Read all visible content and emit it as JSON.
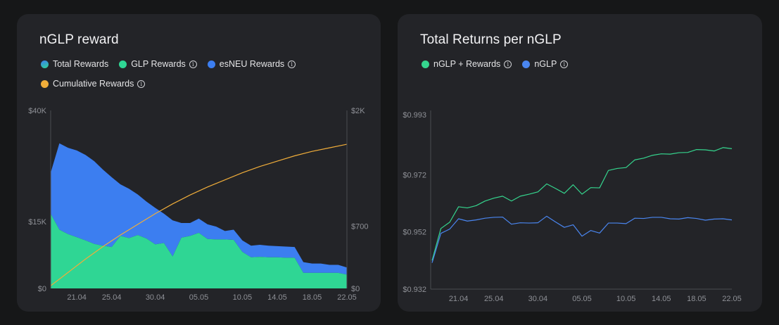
{
  "colors": {
    "background": "#161718",
    "card": "#232428",
    "total": "#2bb7c6",
    "glp": "#2fd694",
    "esneu": "#3c7ef0",
    "cumulative": "#f0ad3a",
    "line_rewards": "#35d58e",
    "line_nglp": "#4a86f0",
    "axis": "#4a4b50",
    "tick_text": "#8e9096"
  },
  "left": {
    "title": "nGLP reward",
    "legend": [
      {
        "label": "Total Rewards",
        "color": "#2bb7c6",
        "info": false,
        "icon": "gradient-dot-icon"
      },
      {
        "label": "GLP Rewards",
        "color": "#2fd694",
        "info": true,
        "icon": "info-icon"
      },
      {
        "label": "esNEU Rewards",
        "color": "#3c7ef0",
        "info": true,
        "icon": "info-icon"
      }
    ],
    "legend2": [
      {
        "label": "Cumulative Rewards",
        "color": "#f0ad3a",
        "info": true,
        "icon": "info-icon"
      }
    ],
    "info_glyph": "i"
  },
  "right": {
    "title": "Total Returns per nGLP",
    "legend": [
      {
        "label": "nGLP + Rewards",
        "color": "#35d58e",
        "info": true,
        "icon": "info-icon"
      },
      {
        "label": "nGLP",
        "color": "#4a86f0",
        "info": true,
        "icon": "info-icon"
      }
    ],
    "info_glyph": "i"
  },
  "chart_data": [
    {
      "type": "area",
      "title": "nGLP reward",
      "x_ticks": [
        "21.04",
        "25.04",
        "30.04",
        "05.05",
        "10.05",
        "14.05",
        "18.05",
        "22.05"
      ],
      "y_left_ticks": [
        "$0",
        "$15K",
        "$40K"
      ],
      "y_left_tick_values": [
        0,
        15000,
        40000
      ],
      "y_right_ticks": [
        "$0",
        "$700",
        "$2K"
      ],
      "y_right_tick_values": [
        0,
        700,
        2000
      ],
      "ylim_left": [
        0,
        40000
      ],
      "ylim_right": [
        0,
        2000
      ],
      "x_day_range": [
        18,
        52
      ],
      "x_tick_days": [
        21,
        25,
        30,
        35,
        40,
        44,
        48,
        52
      ],
      "series": [
        {
          "name": "GLP Rewards",
          "stacked": true,
          "axis": "left",
          "x": [
            18,
            19,
            20,
            21,
            22,
            23,
            24,
            25,
            26,
            27,
            28,
            29,
            30,
            31,
            32,
            33,
            34,
            35,
            36,
            37,
            38,
            39,
            40,
            41,
            42,
            43,
            44,
            45,
            46,
            47,
            48,
            49,
            50,
            51,
            52
          ],
          "values": [
            16800,
            13200,
            12200,
            11500,
            10800,
            10000,
            9600,
            9300,
            11800,
            11300,
            12000,
            11200,
            9900,
            10200,
            7200,
            11400,
            11800,
            12500,
            11100,
            11000,
            11000,
            10900,
            8200,
            7000,
            7100,
            7000,
            7000,
            6900,
            6900,
            3500,
            3500,
            3500,
            3500,
            3500,
            3100
          ]
        },
        {
          "name": "esNEU Rewards",
          "stacked": true,
          "axis": "left",
          "x": [
            18,
            19,
            20,
            21,
            22,
            23,
            24,
            25,
            26,
            27,
            28,
            29,
            30,
            31,
            32,
            33,
            34,
            35,
            36,
            37,
            38,
            39,
            40,
            41,
            42,
            43,
            44,
            45,
            46,
            47,
            48,
            49,
            50,
            51,
            52
          ],
          "values": [
            9200,
            19400,
            19400,
            19500,
            19200,
            18600,
            17100,
            15700,
            11600,
            11100,
            9100,
            8300,
            8200,
            6600,
            8100,
            3300,
            2900,
            3200,
            3300,
            2900,
            1900,
            2300,
            2600,
            2600,
            2700,
            2600,
            2500,
            2500,
            2400,
            2400,
            2100,
            2100,
            1800,
            1800,
            1600
          ]
        },
        {
          "name": "Cumulative Rewards",
          "axis": "right",
          "x": [
            18,
            20,
            22,
            24,
            26,
            28,
            30,
            32,
            34,
            36,
            38,
            40,
            42,
            44,
            46,
            48,
            50,
            52
          ],
          "values": [
            30,
            180,
            330,
            470,
            600,
            720,
            840,
            950,
            1050,
            1140,
            1220,
            1300,
            1370,
            1430,
            1490,
            1540,
            1580,
            1620
          ]
        }
      ]
    },
    {
      "type": "line",
      "title": "Total Returns per nGLP",
      "x_ticks": [
        "21.04",
        "25.04",
        "30.04",
        "05.05",
        "10.05",
        "14.05",
        "18.05",
        "22.05"
      ],
      "y_ticks": [
        "$0.932",
        "$0.952",
        "$0.972",
        "$0.993"
      ],
      "y_tick_values": [
        0.932,
        0.952,
        0.972,
        0.993
      ],
      "ylim": [
        0.932,
        0.993
      ],
      "x_day_range": [
        18,
        52
      ],
      "x_tick_days": [
        21,
        25,
        30,
        35,
        40,
        44,
        48,
        52
      ],
      "series": [
        {
          "name": "nGLP + Rewards",
          "x": [
            18,
            19,
            20,
            21,
            22,
            23,
            24,
            25,
            26,
            27,
            28,
            29,
            30,
            31,
            32,
            33,
            34,
            35,
            36,
            37,
            38,
            39,
            40,
            41,
            42,
            43,
            44,
            45,
            46,
            47,
            48,
            49,
            50,
            51,
            52
          ],
          "values": [
            0.942,
            0.9532,
            0.9554,
            0.9608,
            0.9604,
            0.9612,
            0.9628,
            0.9638,
            0.9645,
            0.9628,
            0.9645,
            0.9652,
            0.966,
            0.9688,
            0.9672,
            0.9655,
            0.9685,
            0.9652,
            0.9675,
            0.9674,
            0.9735,
            0.9742,
            0.9745,
            0.9772,
            0.9778,
            0.9788,
            0.9793,
            0.9792,
            0.9797,
            0.9798,
            0.9808,
            0.9807,
            0.9803,
            0.9815,
            0.9811
          ]
        },
        {
          "name": "nGLP",
          "x": [
            18,
            19,
            20,
            21,
            22,
            23,
            24,
            25,
            26,
            27,
            28,
            29,
            30,
            31,
            32,
            33,
            34,
            35,
            36,
            37,
            38,
            39,
            40,
            41,
            42,
            43,
            44,
            45,
            46,
            47,
            48,
            49,
            50,
            51,
            52
          ],
          "values": [
            0.9412,
            0.9515,
            0.953,
            0.9566,
            0.9558,
            0.9562,
            0.9568,
            0.9571,
            0.9572,
            0.9547,
            0.9552,
            0.9551,
            0.9552,
            0.9575,
            0.9555,
            0.9536,
            0.9545,
            0.9505,
            0.9525,
            0.9516,
            0.9551,
            0.9551,
            0.9549,
            0.9568,
            0.9567,
            0.9571,
            0.9571,
            0.9566,
            0.9565,
            0.957,
            0.9567,
            0.9561,
            0.9565,
            0.9566,
            0.9562
          ]
        }
      ]
    }
  ]
}
